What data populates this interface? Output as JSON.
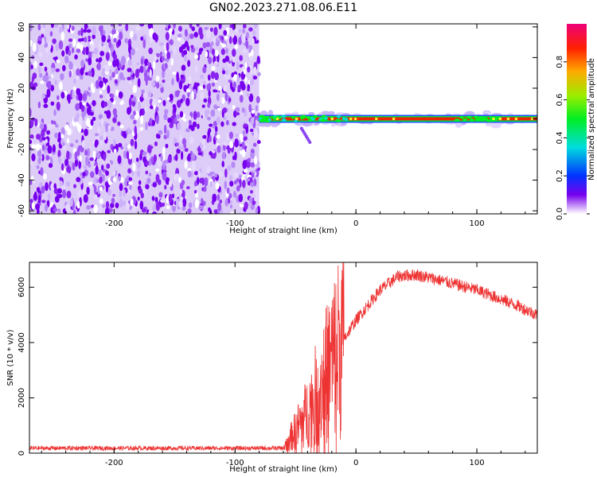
{
  "title": "GN02.2023.271.08.06.E11",
  "chart_data": [
    {
      "type": "heatmap",
      "xlabel": "Height of straight line (km)",
      "ylabel": "Frequency (Hz)",
      "xlim": [
        -270,
        150
      ],
      "ylim": [
        -62,
        62
      ],
      "xticks": [
        -200,
        -100,
        0,
        100
      ],
      "yticks": [
        -60,
        -40,
        -20,
        0,
        20,
        40,
        60
      ],
      "noise_region_x": [
        -270,
        -80
      ],
      "carrier_frequency": 0,
      "colorbar": {
        "label": "Normalized spectral amplitude",
        "range": [
          0,
          1
        ],
        "ticks": [
          0.0,
          0.2,
          0.4,
          0.6,
          0.8
        ]
      }
    },
    {
      "type": "line",
      "series": [
        {
          "color": "#ee3333"
        }
      ],
      "xlabel": "Height of straight line (km)",
      "ylabel": "SNR (10 * v/v)",
      "xlim": [
        -270,
        150
      ],
      "ylim": [
        0,
        6900
      ],
      "xticks": [
        -200,
        -100,
        0,
        100
      ],
      "yticks": [
        0,
        2000,
        4000,
        6000
      ],
      "profile": {
        "x": [
          -270,
          -60,
          -55,
          -40,
          -25,
          -15,
          0,
          20,
          35,
          50,
          70,
          100,
          130,
          150
        ],
        "y": [
          180,
          180,
          500,
          1500,
          2800,
          3800,
          4800,
          5900,
          6400,
          6450,
          6250,
          5900,
          5400,
          5000
        ]
      }
    }
  ]
}
